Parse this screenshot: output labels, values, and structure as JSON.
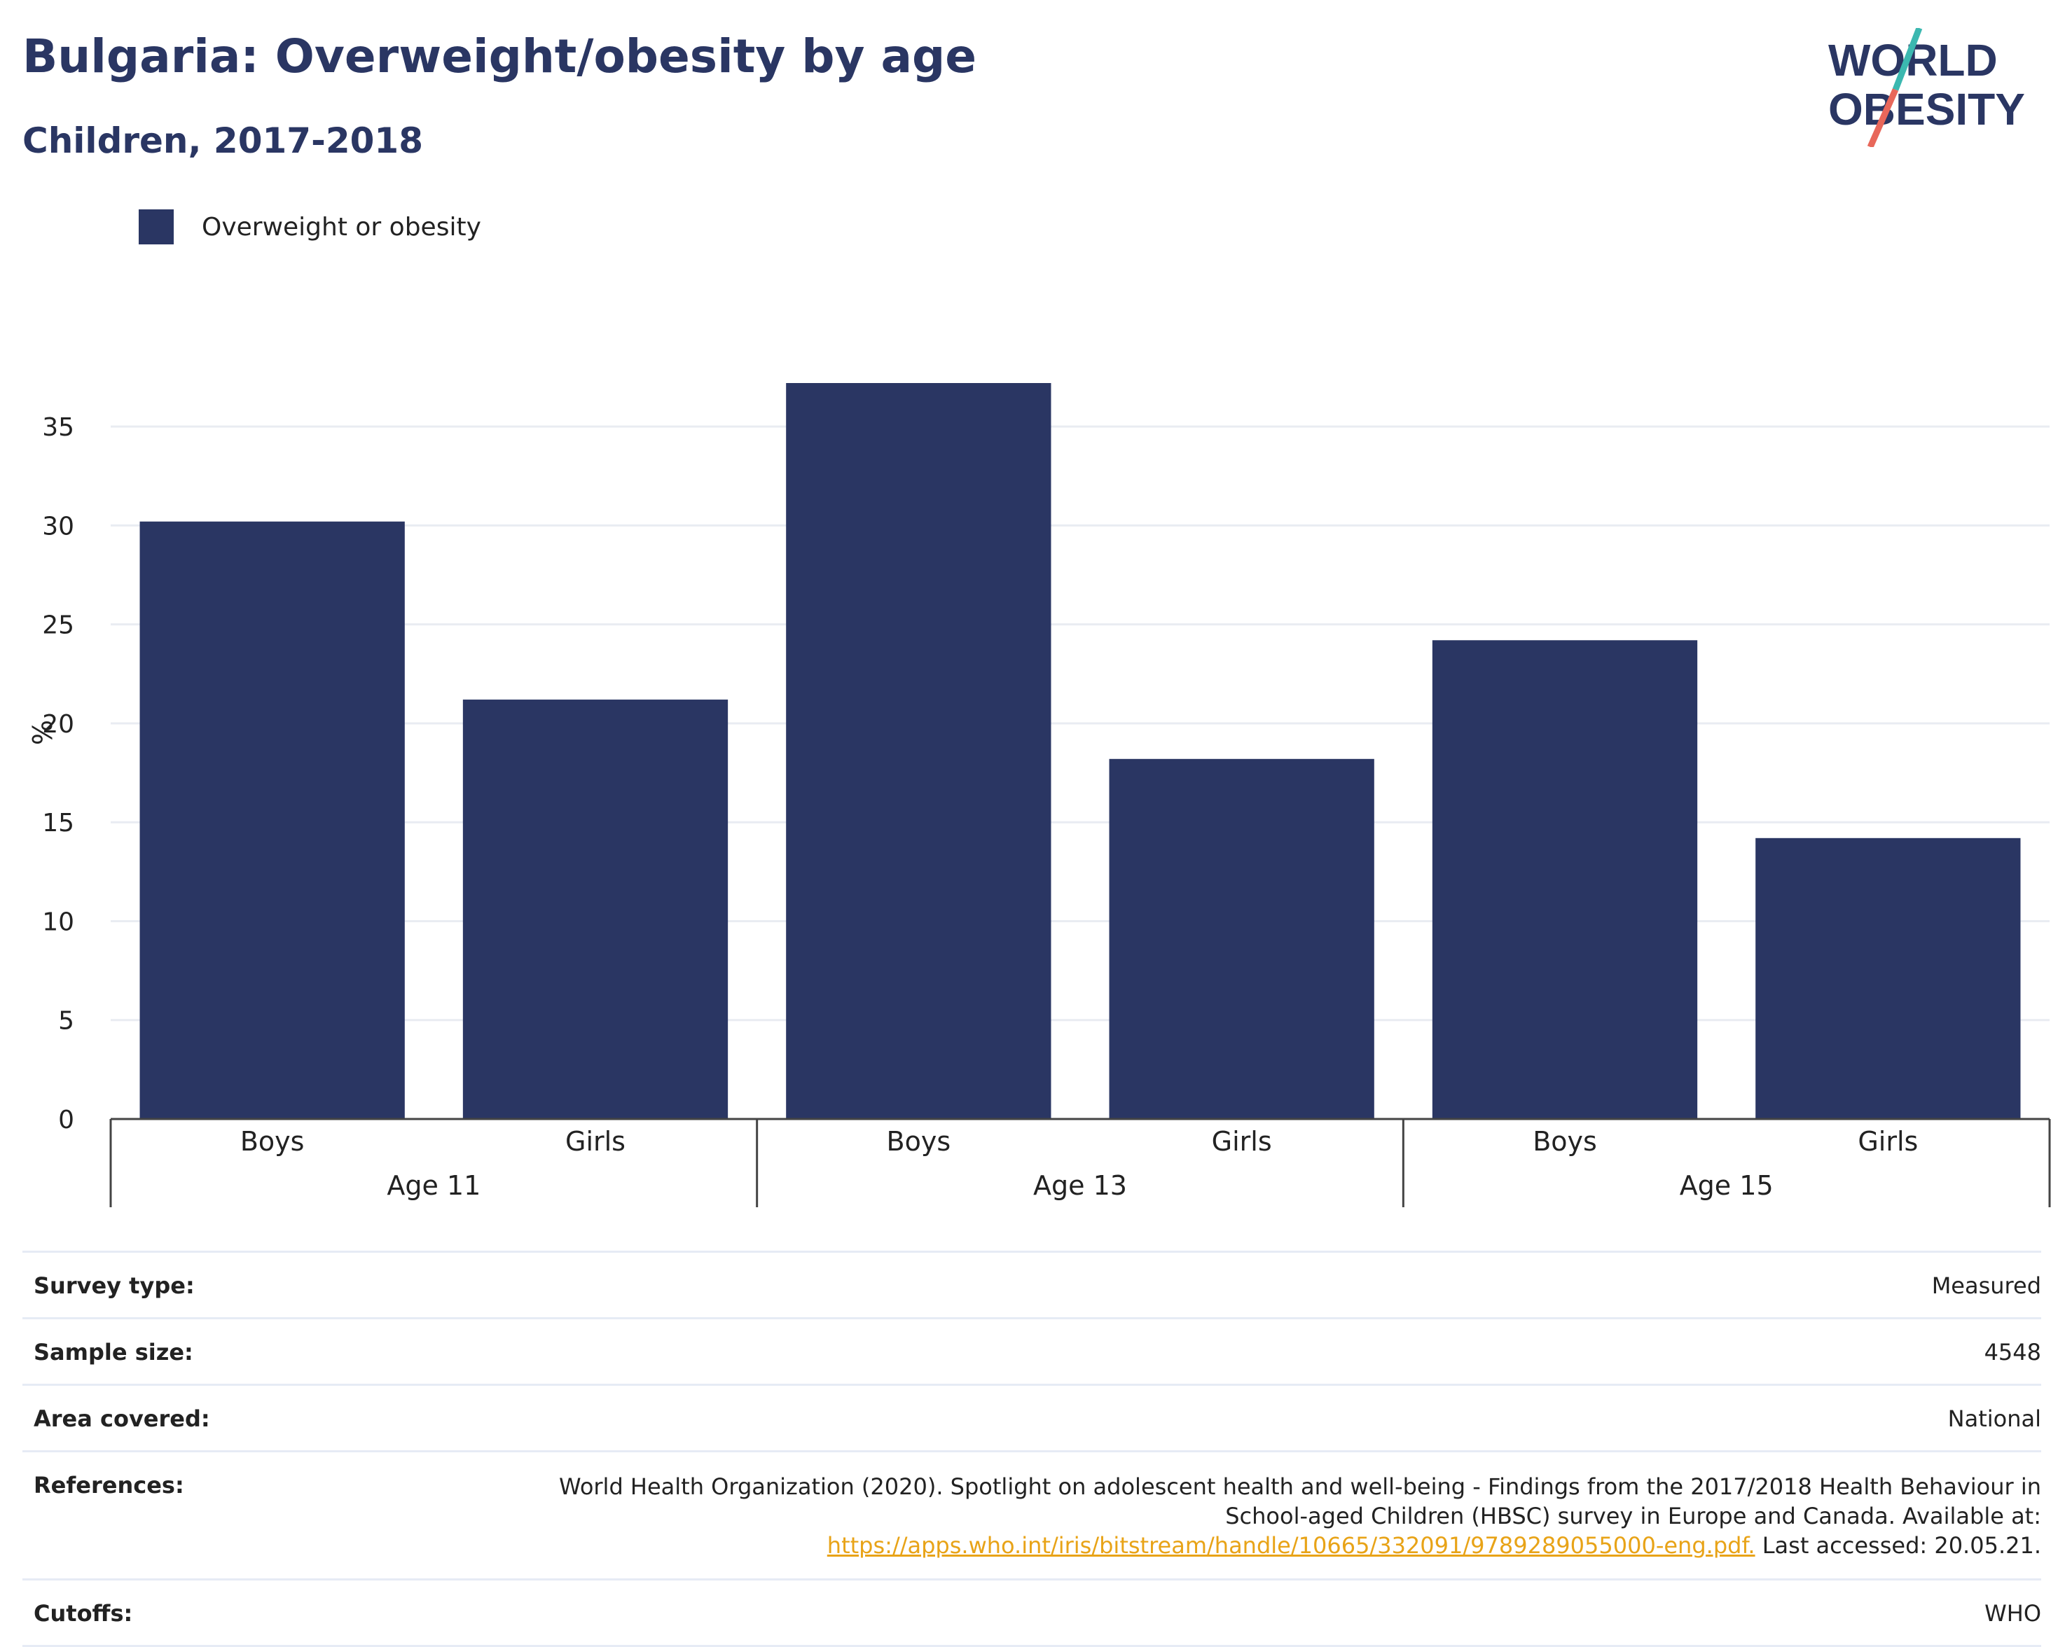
{
  "header": {
    "title": "Bulgaria: Overweight/obesity by age",
    "subtitle": "Children, 2017-2018"
  },
  "logo": {
    "line1": "WORLD",
    "line2": "OBESITY",
    "icon": "world-obesity-logo",
    "colors": {
      "text": "#2a3663",
      "slash_top": "#3bb8b0",
      "slash_bottom": "#e8675a"
    }
  },
  "legend": {
    "label": "Overweight or obesity",
    "color": "#2a3663"
  },
  "chart_data": {
    "type": "bar",
    "groups": [
      "Age 11",
      "Age 13",
      "Age 15"
    ],
    "categories": [
      "Boys",
      "Girls",
      "Boys",
      "Girls",
      "Boys",
      "Girls"
    ],
    "category_groups": [
      "Age 11",
      "Age 11",
      "Age 13",
      "Age 13",
      "Age 15",
      "Age 15"
    ],
    "series": [
      {
        "name": "Overweight or obesity",
        "color": "#2a3663",
        "values": [
          30.2,
          21.2,
          37.2,
          18.2,
          24.2,
          14.2
        ]
      }
    ],
    "ylabel": "%",
    "ylim": [
      0,
      37.2
    ],
    "yticks": [
      0,
      5,
      10,
      15,
      20,
      25,
      30,
      35
    ],
    "grid": true,
    "legend_position": "top-left"
  },
  "meta": {
    "survey_type": {
      "label": "Survey type:",
      "value": "Measured"
    },
    "sample_size": {
      "label": "Sample size:",
      "value": "4548"
    },
    "area_covered": {
      "label": "Area covered:",
      "value": "National"
    },
    "references": {
      "label": "References:",
      "text": "World Health Organization (2020). Spotlight on adolescent health and well-being - Findings from the 2017/2018 Health Behaviour in School-aged Children (HBSC) survey in Europe and Canada. Available at:",
      "link": "https://apps.who.int/iris/bitstream/handle/10665/332091/9789289055000-eng.pdf.",
      "suffix": " Last accessed: 20.05.21."
    },
    "cutoffs": {
      "label": "Cutoffs:",
      "value": "WHO"
    }
  }
}
